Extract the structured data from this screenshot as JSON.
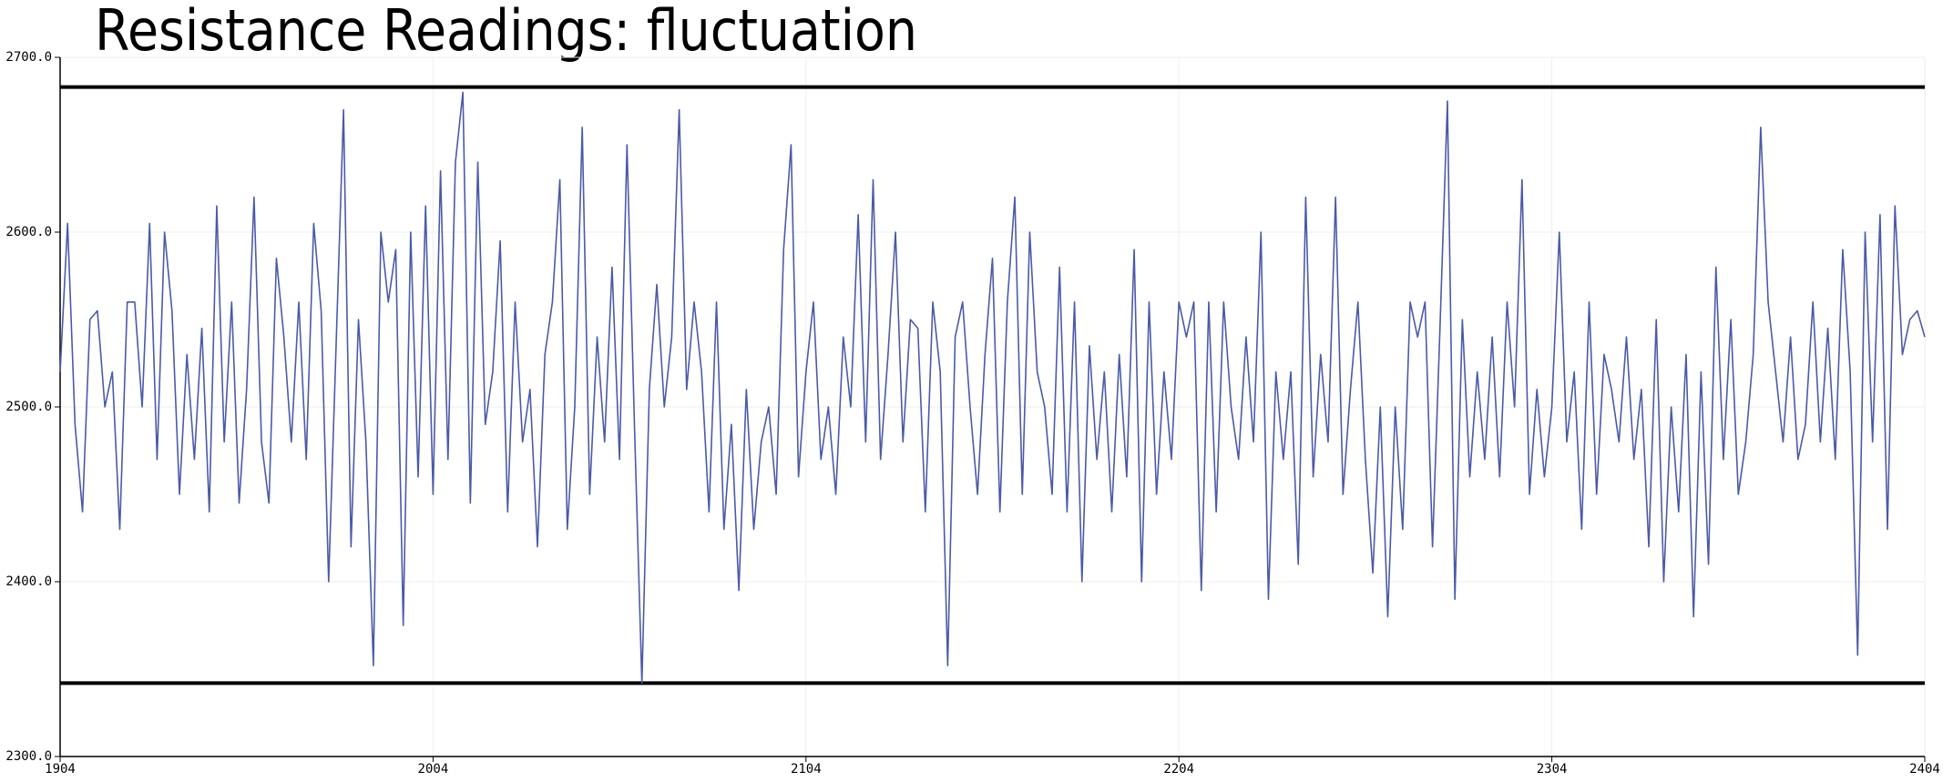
{
  "chart_data": {
    "type": "line",
    "title": "Resistance Readings: fluctuation",
    "x": [
      1904,
      1906,
      1908,
      1910,
      1912,
      1914,
      1916,
      1918,
      1920,
      1922,
      1924,
      1926,
      1928,
      1930,
      1932,
      1934,
      1936,
      1938,
      1940,
      1942,
      1944,
      1946,
      1948,
      1950,
      1952,
      1954,
      1956,
      1958,
      1960,
      1962,
      1964,
      1966,
      1968,
      1970,
      1972,
      1974,
      1976,
      1978,
      1980,
      1982,
      1984,
      1986,
      1988,
      1990,
      1992,
      1994,
      1996,
      1998,
      2000,
      2002,
      2004,
      2006,
      2008,
      2010,
      2012,
      2014,
      2016,
      2018,
      2020,
      2022,
      2024,
      2026,
      2028,
      2030,
      2032,
      2034,
      2036,
      2038,
      2040,
      2042,
      2044,
      2046,
      2048,
      2050,
      2052,
      2054,
      2056,
      2058,
      2060,
      2062,
      2064,
      2066,
      2068,
      2070,
      2072,
      2074,
      2076,
      2078,
      2080,
      2082,
      2084,
      2086,
      2088,
      2090,
      2092,
      2094,
      2096,
      2098,
      2100,
      2102,
      2104,
      2106,
      2108,
      2110,
      2112,
      2114,
      2116,
      2118,
      2120,
      2122,
      2124,
      2126,
      2128,
      2130,
      2132,
      2134,
      2136,
      2138,
      2140,
      2142,
      2144,
      2146,
      2148,
      2150,
      2152,
      2154,
      2156,
      2158,
      2160,
      2162,
      2164,
      2166,
      2168,
      2170,
      2172,
      2174,
      2176,
      2178,
      2180,
      2182,
      2184,
      2186,
      2188,
      2190,
      2192,
      2194,
      2196,
      2198,
      2200,
      2202,
      2204,
      2206,
      2208,
      2210,
      2212,
      2214,
      2216,
      2218,
      2220,
      2222,
      2224,
      2226,
      2228,
      2230,
      2232,
      2234,
      2236,
      2238,
      2240,
      2242,
      2244,
      2246,
      2248,
      2250,
      2252,
      2254,
      2256,
      2258,
      2260,
      2262,
      2264,
      2266,
      2268,
      2270,
      2272,
      2274,
      2276,
      2278,
      2280,
      2282,
      2284,
      2286,
      2288,
      2290,
      2292,
      2294,
      2296,
      2298,
      2300,
      2302,
      2304,
      2306,
      2308,
      2310,
      2312,
      2314,
      2316,
      2318,
      2320,
      2322,
      2324,
      2326,
      2328,
      2330,
      2332,
      2334,
      2336,
      2338,
      2340,
      2342,
      2344,
      2346,
      2348,
      2350,
      2352,
      2354,
      2356,
      2358,
      2360,
      2362,
      2364,
      2366,
      2368,
      2370,
      2372,
      2374,
      2376,
      2378,
      2380,
      2382,
      2384,
      2386,
      2388,
      2390,
      2392,
      2394,
      2396,
      2398,
      2400,
      2402,
      2404
    ],
    "series": [
      {
        "color": "#4a5aa8",
        "values": [
          2520,
          2605,
          2490,
          2440,
          2550,
          2555,
          2500,
          2520,
          2430,
          2560,
          2560,
          2500,
          2605,
          2470,
          2600,
          2555,
          2450,
          2530,
          2470,
          2545,
          2440,
          2615,
          2480,
          2560,
          2445,
          2510,
          2620,
          2480,
          2445,
          2585,
          2540,
          2480,
          2560,
          2470,
          2605,
          2555,
          2400,
          2535,
          2670,
          2420,
          2550,
          2480,
          2352,
          2600,
          2560,
          2590,
          2375,
          2600,
          2460,
          2615,
          2450,
          2635,
          2470,
          2640,
          2680,
          2445,
          2640,
          2490,
          2520,
          2595,
          2440,
          2560,
          2480,
          2510,
          2420,
          2530,
          2560,
          2630,
          2430,
          2500,
          2660,
          2450,
          2540,
          2480,
          2580,
          2470,
          2650,
          2490,
          2342,
          2510,
          2570,
          2500,
          2540,
          2670,
          2510,
          2560,
          2520,
          2440,
          2560,
          2430,
          2490,
          2395,
          2510,
          2430,
          2480,
          2500,
          2450,
          2590,
          2650,
          2460,
          2520,
          2560,
          2470,
          2500,
          2450,
          2540,
          2500,
          2610,
          2480,
          2630,
          2470,
          2530,
          2600,
          2480,
          2550,
          2545,
          2440,
          2560,
          2520,
          2352,
          2540,
          2560,
          2500,
          2450,
          2530,
          2585,
          2440,
          2560,
          2620,
          2450,
          2600,
          2520,
          2500,
          2450,
          2580,
          2440,
          2560,
          2400,
          2535,
          2470,
          2520,
          2440,
          2530,
          2460,
          2590,
          2400,
          2560,
          2450,
          2520,
          2470,
          2560,
          2540,
          2560,
          2395,
          2560,
          2440,
          2560,
          2500,
          2470,
          2540,
          2480,
          2600,
          2390,
          2520,
          2470,
          2520,
          2410,
          2620,
          2460,
          2530,
          2480,
          2620,
          2450,
          2510,
          2560,
          2470,
          2405,
          2500,
          2380,
          2500,
          2430,
          2560,
          2540,
          2560,
          2420,
          2545,
          2675,
          2390,
          2550,
          2460,
          2520,
          2470,
          2540,
          2460,
          2560,
          2500,
          2630,
          2450,
          2510,
          2460,
          2500,
          2600,
          2480,
          2520,
          2430,
          2560,
          2450,
          2530,
          2510,
          2480,
          2540,
          2470,
          2510,
          2420,
          2550,
          2400,
          2500,
          2440,
          2530,
          2380,
          2520,
          2410,
          2580,
          2470,
          2550,
          2450,
          2480,
          2530,
          2660,
          2560,
          2520,
          2480,
          2540,
          2470,
          2490,
          2560,
          2480,
          2545,
          2470,
          2590,
          2520,
          2358,
          2600,
          2480,
          2610,
          2430,
          2615,
          2530,
          2550,
          2555,
          2540
        ]
      }
    ],
    "hlines": [
      2683,
      2342
    ],
    "xlim": [
      1904,
      2404
    ],
    "xticks": [
      1904,
      2004,
      2104,
      2204,
      2304,
      2404
    ],
    "ylim": [
      2300,
      2700
    ],
    "yticks": [
      {
        "value": 2300,
        "label": "2300.0"
      },
      {
        "value": 2400,
        "label": "2400.0"
      },
      {
        "value": 2500,
        "label": "2500.0"
      },
      {
        "value": 2600,
        "label": "2600.0"
      },
      {
        "value": 2700,
        "label": "2700.0"
      }
    ],
    "grid": true
  }
}
